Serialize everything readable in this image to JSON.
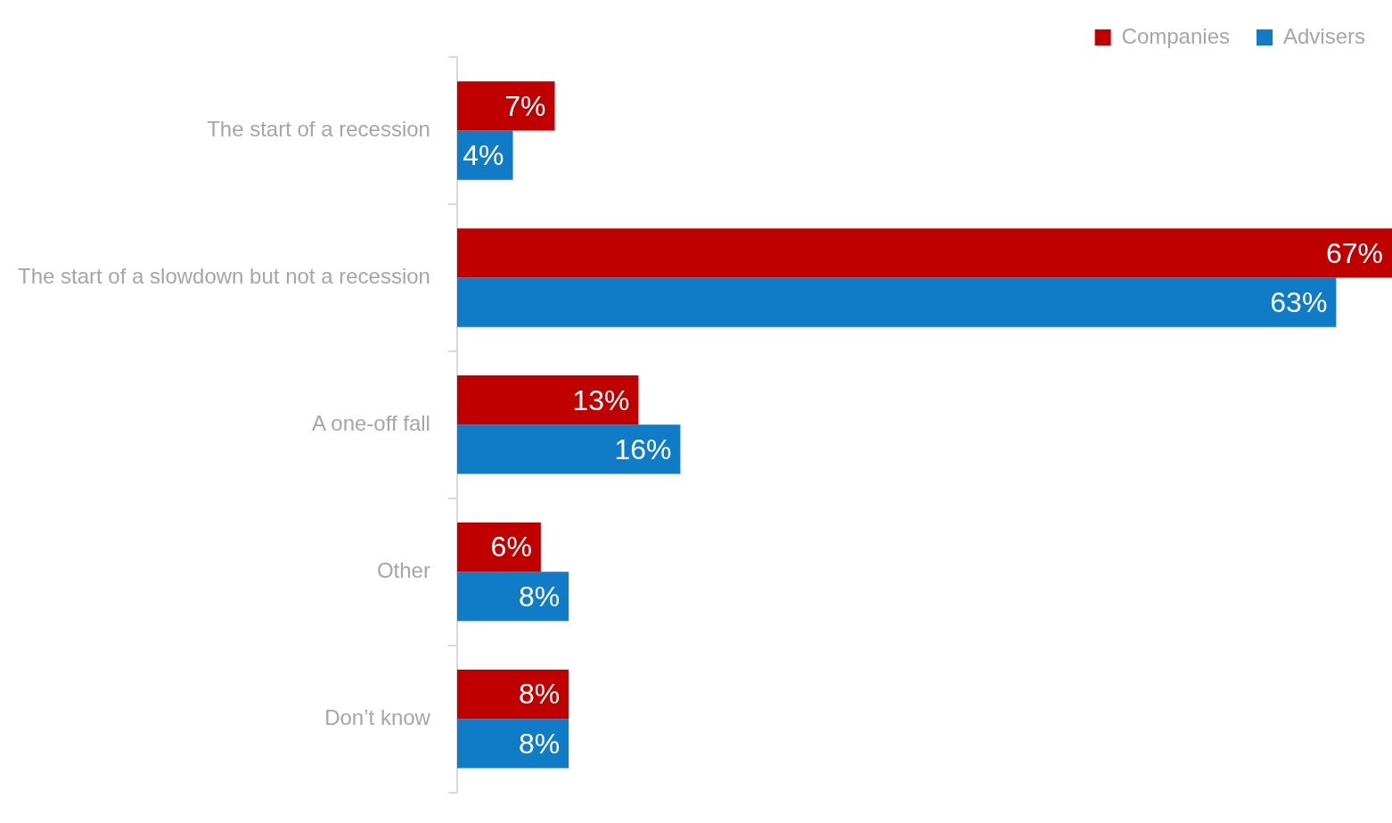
{
  "chart_data": {
    "type": "bar",
    "orientation": "horizontal",
    "categories": [
      "The start of a recession",
      "The start of a slowdown but not a recession",
      "A one-off fall",
      "Other",
      "Don’t know"
    ],
    "series": [
      {
        "name": "Companies",
        "color": "#c00000",
        "values": [
          7,
          67,
          13,
          6,
          8
        ],
        "value_labels": [
          "7%",
          "67%",
          "13%",
          "6%",
          "8%"
        ]
      },
      {
        "name": "Advisers",
        "color": "#107bc6",
        "values": [
          4,
          63,
          16,
          8,
          8
        ],
        "value_labels": [
          "4%",
          "63%",
          "16%",
          "8%",
          "8%"
        ]
      }
    ],
    "xlim": [
      0,
      67
    ],
    "tick_labels": "y",
    "grid": false,
    "legend": "top right"
  }
}
